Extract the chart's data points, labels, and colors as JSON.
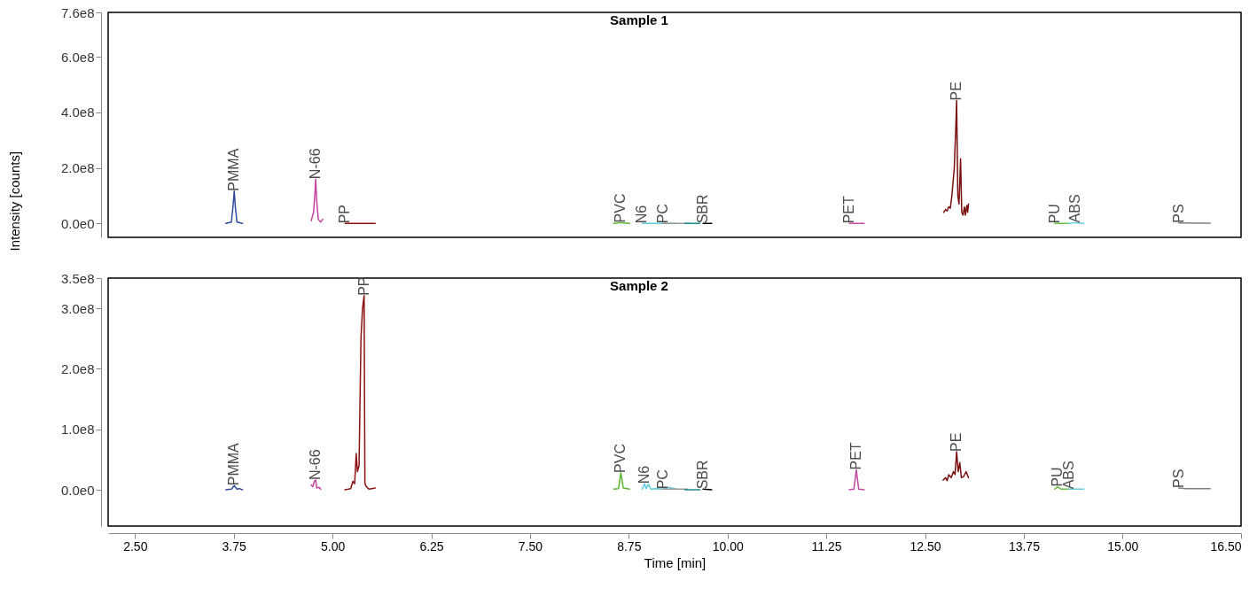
{
  "chart_data": [
    {
      "type": "line",
      "title": "Sample 1",
      "ylabel": "Intensity [counts]",
      "xlim": [
        2.16,
        16.5
      ],
      "ylim": [
        -50000000.0,
        760000000.0
      ],
      "xticks": [
        2.5,
        3.75,
        5.0,
        6.25,
        7.5,
        8.75,
        10.0,
        11.25,
        12.5,
        13.75,
        15.0,
        16.5
      ],
      "yticks": [
        {
          "value": 0,
          "label": "0.0e0"
        },
        {
          "value": 200000000.0,
          "label": "2.0e8"
        },
        {
          "value": 400000000.0,
          "label": "4.0e8"
        },
        {
          "value": 600000000.0,
          "label": "6.0e8"
        },
        {
          "value": 760000000.0,
          "label": "7.6e8"
        }
      ],
      "tick_labels": "y",
      "grid": false,
      "legend": false,
      "marker": "none",
      "line_style": "solid",
      "series": [
        {
          "name": "PMMA",
          "color": "#2e4a9e",
          "x": [
            3.65,
            3.72,
            3.74,
            3.756,
            3.77,
            3.79,
            3.86
          ],
          "values": [
            0,
            5000000.0,
            60000000.0,
            117000000.0,
            60000000.0,
            5000000.0,
            0
          ]
        },
        {
          "name": "N-66",
          "color": "#c2449e",
          "x": [
            4.73,
            4.76,
            4.78,
            4.787,
            4.8,
            4.82,
            4.85,
            4.877
          ],
          "values": [
            10000000.0,
            40000000.0,
            120000000.0,
            160000000.0,
            80000000.0,
            15000000.0,
            5000000.0,
            15000000.0
          ]
        },
        {
          "name": "PP",
          "color": "#8b1111",
          "x": [
            5.16,
            5.54
          ],
          "values": [
            0,
            0
          ]
        },
        {
          "name": "PVC",
          "color": "#5cb82e",
          "x": [
            8.56,
            8.65,
            8.76
          ],
          "values": [
            0,
            3000000.0,
            0
          ]
        },
        {
          "name": "N6",
          "color": "#5cc8dc",
          "x": [
            8.92,
            9.35
          ],
          "values": [
            0,
            0
          ]
        },
        {
          "name": "PC",
          "color": "#999999",
          "x": [
            9.18,
            9.52
          ],
          "values": [
            0,
            0
          ]
        },
        {
          "color": "#1a8a8a",
          "x": [
            9.46,
            9.65
          ],
          "values": [
            0,
            0
          ]
        },
        {
          "name": "SBR",
          "color": "#000000",
          "x": [
            9.69,
            9.8
          ],
          "values": [
            0,
            0
          ]
        },
        {
          "name": "PET",
          "color": "#c44aa2",
          "x": [
            11.54,
            11.73
          ],
          "values": [
            0,
            0
          ]
        },
        {
          "name": "PE",
          "color": "#7a1010",
          "x": [
            12.735,
            12.76,
            12.78,
            12.8,
            12.82,
            12.84,
            12.87,
            12.89,
            12.9,
            12.915,
            12.93,
            12.95,
            12.965,
            12.98,
            13.0,
            13.01,
            13.03,
            13.04,
            13.05
          ],
          "values": [
            40000000.0,
            50000000.0,
            45000000.0,
            60000000.0,
            55000000.0,
            100000000.0,
            200000000.0,
            350000000.0,
            443000000.0,
            100000000.0,
            70000000.0,
            233000000.0,
            40000000.0,
            30000000.0,
            60000000.0,
            30000000.0,
            65000000.0,
            40000000.0,
            70000000.0
          ]
        },
        {
          "name": "PU",
          "color": "#6cc043",
          "x": [
            14.14,
            14.32
          ],
          "values": [
            0,
            0
          ]
        },
        {
          "name": "ABS",
          "color": "#62cde0",
          "x": [
            14.32,
            14.4,
            14.51
          ],
          "values": [
            0,
            3000000.0,
            0
          ]
        },
        {
          "name": "PS",
          "color": "#808080",
          "x": [
            15.71,
            16.11
          ],
          "values": [
            2000000.0,
            1000000.0
          ]
        }
      ]
    },
    {
      "type": "line",
      "title": "Sample 2",
      "xlabel": "Time [min]",
      "xlim": [
        2.16,
        16.5
      ],
      "ylim": [
        -60000000.0,
        350000000.0
      ],
      "xticks": [
        {
          "value": 2.5,
          "label": "2.50"
        },
        3.75,
        {
          "value": 5.0,
          "label": "5.00"
        },
        6.25,
        {
          "value": 7.5,
          "label": "7.50"
        },
        8.75,
        {
          "value": 10.0,
          "label": "10.00"
        },
        11.25,
        {
          "value": 12.5,
          "label": "12.50"
        },
        13.75,
        {
          "value": 15.0,
          "label": "15.00"
        },
        {
          "value": 16.5,
          "label": "16.50"
        }
      ],
      "yticks": [
        {
          "value": 0,
          "label": "0.0e0"
        },
        {
          "value": 100000000.0,
          "label": "1.0e8"
        },
        {
          "value": 200000000.0,
          "label": "2.0e8"
        },
        {
          "value": 300000000.0,
          "label": "3.0e8"
        },
        {
          "value": 350000000.0,
          "label": "3.5e8"
        }
      ],
      "grid": false,
      "legend": false,
      "marker": "none",
      "line_style": "solid",
      "series": [
        {
          "name": "PMMA",
          "color": "#2e4a9e",
          "x": [
            3.65,
            3.72,
            3.756,
            3.79,
            3.82,
            3.86
          ],
          "values": [
            0,
            1000000.0,
            7000000.0,
            1000000.0,
            2000000.0,
            0
          ]
        },
        {
          "name": "N-66",
          "color": "#c2449e",
          "x": [
            4.73,
            4.75,
            4.77,
            4.787,
            4.8,
            4.83,
            4.85
          ],
          "values": [
            8000000.0,
            5000000.0,
            14000000.0,
            16000000.0,
            3000000.0,
            4000000.0,
            1000000.0
          ]
        },
        {
          "name": "PP",
          "color": "#8b1111",
          "x": [
            5.157,
            5.2,
            5.23,
            5.258,
            5.28,
            5.3,
            5.315,
            5.336,
            5.36,
            5.38,
            5.4,
            5.41,
            5.43,
            5.46,
            5.5,
            5.54
          ],
          "values": [
            0,
            1000000.0,
            2000000.0,
            14000000.0,
            10000000.0,
            60000000.0,
            30000000.0,
            40000000.0,
            250000000.0,
            300000000.0,
            321000000.0,
            10000000.0,
            5000000.0,
            1000000.0,
            2000000.0,
            3000000.0
          ]
        },
        {
          "name": "PVC",
          "color": "#5cb82e",
          "x": [
            8.56,
            8.62,
            8.65,
            8.68,
            8.76
          ],
          "values": [
            1000000.0,
            2000000.0,
            28000000.0,
            3000000.0,
            1000000.0
          ]
        },
        {
          "name": "N6",
          "color": "#5cc8dc",
          "x": [
            8.92,
            8.95,
            8.97,
            9.0,
            9.03,
            9.1,
            9.2,
            9.25,
            9.35
          ],
          "values": [
            1000000.0,
            10000000.0,
            2000000.0,
            9000000.0,
            1000000.0,
            2000000.0,
            1000000.0,
            4000000.0,
            1000000.0
          ]
        },
        {
          "name": "PC",
          "color": "#999999",
          "x": [
            9.18,
            9.5
          ],
          "values": [
            1000000.0,
            1000000.0
          ]
        },
        {
          "color": "#1a8a8a",
          "x": [
            9.46,
            9.65
          ],
          "values": [
            0,
            0
          ]
        },
        {
          "name": "SBR",
          "color": "#000000",
          "x": [
            9.69,
            9.8
          ],
          "values": [
            1000000.0,
            0
          ]
        },
        {
          "name": "PET",
          "color": "#c44aa2",
          "x": [
            11.54,
            11.6,
            11.63,
            11.66,
            11.73
          ],
          "values": [
            0,
            1000000.0,
            33000000.0,
            1000000.0,
            0
          ]
        },
        {
          "name": "PE",
          "color": "#7a1010",
          "x": [
            12.73,
            12.76,
            12.78,
            12.8,
            12.83,
            12.86,
            12.88,
            12.9,
            12.92,
            12.94,
            12.96,
            12.99,
            13.02,
            13.05
          ],
          "values": [
            16000000.0,
            20000000.0,
            15000000.0,
            25000000.0,
            20000000.0,
            30000000.0,
            25000000.0,
            63000000.0,
            30000000.0,
            45000000.0,
            20000000.0,
            22000000.0,
            30000000.0,
            20000000.0
          ]
        },
        {
          "name": "PU",
          "color": "#6cc043",
          "x": [
            14.14,
            14.18,
            14.22,
            14.32
          ],
          "values": [
            1000000.0,
            5000000.0,
            1000000.0,
            1000000.0
          ]
        },
        {
          "name": "ABS",
          "color": "#62cde0",
          "x": [
            14.32,
            14.51
          ],
          "values": [
            1000000.0,
            1000000.0
          ]
        },
        {
          "name": "PS",
          "color": "#808080",
          "x": [
            15.71,
            15.8,
            16.11
          ],
          "values": [
            3000000.0,
            2000000.0,
            2000000.0
          ]
        }
      ]
    }
  ]
}
